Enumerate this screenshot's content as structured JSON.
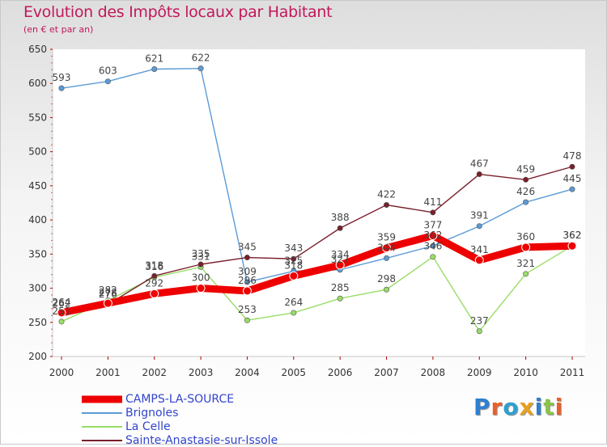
{
  "title": "Evolution des Impôts locaux par Habitant",
  "subtitle": "(en € et par an)",
  "logo_text": "Proxiti",
  "chart_data": {
    "type": "line",
    "x": [
      "2000",
      "2001",
      "2002",
      "2003",
      "2004",
      "2005",
      "2006",
      "2007",
      "2008",
      "2009",
      "2010",
      "2011"
    ],
    "ylim": [
      200,
      650
    ],
    "yticks": [
      200,
      250,
      300,
      350,
      400,
      450,
      500,
      550,
      600,
      650
    ],
    "grid": false,
    "legend_position": "bottom",
    "series": [
      {
        "name": "CAMPS-LA-SOURCE",
        "color": "#ee0000",
        "values": [
          264,
          278,
          292,
          300,
          296,
          318,
          334,
          359,
          377,
          341,
          360,
          362
        ]
      },
      {
        "name": "Brignoles",
        "color": "#5b9bd5",
        "values": [
          593,
          603,
          621,
          622,
          309,
          325,
          327,
          344,
          362,
          391,
          426,
          445
        ]
      },
      {
        "name": "La Celle",
        "color": "#99dd66",
        "values": [
          251,
          282,
          316,
          331,
          253,
          264,
          285,
          298,
          346,
          237,
          321,
          362
        ]
      },
      {
        "name": "Sainte-Anastasie-sur-Issole",
        "color": "#7a1f2b",
        "values": [
          262,
          276,
          318,
          335,
          345,
          343,
          388,
          422,
          411,
          467,
          459,
          478
        ]
      }
    ]
  }
}
